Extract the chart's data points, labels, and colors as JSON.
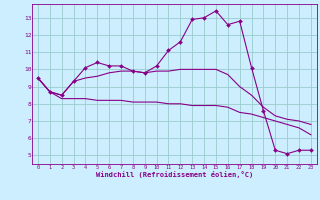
{
  "xlabel": "Windchill (Refroidissement éolien,°C)",
  "bg_color": "#cceeff",
  "line_color": "#880088",
  "grid_color": "#99cccc",
  "x_ticks": [
    0,
    1,
    2,
    3,
    4,
    5,
    6,
    7,
    8,
    9,
    10,
    11,
    12,
    13,
    14,
    15,
    16,
    17,
    18,
    19,
    20,
    21,
    22,
    23
  ],
  "y_ticks": [
    5,
    6,
    7,
    8,
    9,
    10,
    11,
    12,
    13
  ],
  "series1_x": [
    0,
    1,
    2,
    3,
    4,
    5,
    6,
    7,
    8,
    9,
    10,
    11,
    12,
    13,
    14,
    15,
    16,
    17,
    18,
    19,
    20,
    21,
    22,
    23
  ],
  "series1_y": [
    9.5,
    8.7,
    8.5,
    9.3,
    10.1,
    10.4,
    10.2,
    10.2,
    9.9,
    9.8,
    10.2,
    11.1,
    11.6,
    12.9,
    13.0,
    13.4,
    12.6,
    12.8,
    10.1,
    7.6,
    5.3,
    5.1,
    5.3,
    5.3
  ],
  "series2_x": [
    0,
    1,
    2,
    3,
    4,
    5,
    6,
    7,
    8,
    9,
    10,
    11,
    12,
    13,
    14,
    15,
    16,
    17,
    18,
    19,
    20,
    21,
    22,
    23
  ],
  "series2_y": [
    9.5,
    8.7,
    8.3,
    8.3,
    8.3,
    8.2,
    8.2,
    8.2,
    8.1,
    8.1,
    8.1,
    8.0,
    8.0,
    7.9,
    7.9,
    7.9,
    7.8,
    7.5,
    7.4,
    7.2,
    7.0,
    6.8,
    6.6,
    6.2
  ],
  "series3_x": [
    0,
    1,
    2,
    3,
    4,
    5,
    6,
    7,
    8,
    9,
    10,
    11,
    12,
    13,
    14,
    15,
    16,
    17,
    18,
    19,
    20,
    21,
    22,
    23
  ],
  "series3_y": [
    9.5,
    8.7,
    8.5,
    9.3,
    9.5,
    9.6,
    9.8,
    9.9,
    9.9,
    9.8,
    9.9,
    9.9,
    10.0,
    10.0,
    10.0,
    10.0,
    9.7,
    9.0,
    8.5,
    7.8,
    7.3,
    7.1,
    7.0,
    6.8
  ],
  "ylim": [
    4.5,
    13.8
  ],
  "xlim": [
    -0.5,
    23.5
  ]
}
